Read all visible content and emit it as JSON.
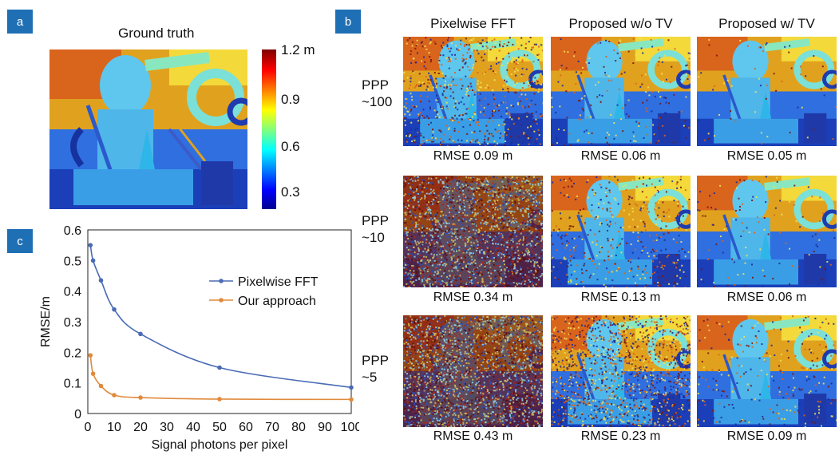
{
  "panels": {
    "a": "a",
    "b": "b",
    "c": "c"
  },
  "ground_truth": {
    "title": "Ground truth",
    "colorbar_labels": [
      "1.2 m",
      "0.9",
      "0.6",
      "0.3"
    ]
  },
  "grid": {
    "columns": [
      "Pixelwise FFT",
      "Proposed w/o TV",
      "Proposed w/ TV"
    ],
    "rows": [
      {
        "label_line1": "PPP",
        "label_line2": "~100",
        "rmse": [
          "RMSE 0.09 m",
          "RMSE 0.06 m",
          "RMSE 0.05 m"
        ]
      },
      {
        "label_line1": "PPP",
        "label_line2": "~10",
        "rmse": [
          "RMSE 0.34 m",
          "RMSE 0.13 m",
          "RMSE 0.06 m"
        ]
      },
      {
        "label_line1": "PPP",
        "label_line2": "~5",
        "rmse": [
          "RMSE 0.43 m",
          "RMSE 0.23 m",
          "RMSE 0.09 m"
        ]
      }
    ]
  },
  "chart_data": {
    "type": "line",
    "title": "",
    "xlabel": "Signal photons per pixel",
    "ylabel": "RMSE/m",
    "xlim": [
      0,
      100
    ],
    "ylim": [
      0,
      0.6
    ],
    "xticks": [
      "0",
      "10",
      "20",
      "30",
      "40",
      "50",
      "60",
      "70",
      "80",
      "90",
      "100"
    ],
    "yticks": [
      "0",
      "0.1",
      "0.2",
      "0.3",
      "0.4",
      "0.5",
      "0.6"
    ],
    "legend_position": "right",
    "grid": false,
    "series": [
      {
        "name": "Pixelwise FFT",
        "color": "#4a6bb5",
        "x": [
          1,
          2,
          5,
          10,
          20,
          50,
          100
        ],
        "y": [
          0.55,
          0.5,
          0.435,
          0.34,
          0.26,
          0.15,
          0.085
        ]
      },
      {
        "name": "Our approach",
        "color": "#e08a3c",
        "x": [
          1,
          2,
          5,
          10,
          20,
          50,
          100
        ],
        "y": [
          0.19,
          0.13,
          0.09,
          0.06,
          0.052,
          0.047,
          0.046
        ]
      }
    ]
  }
}
